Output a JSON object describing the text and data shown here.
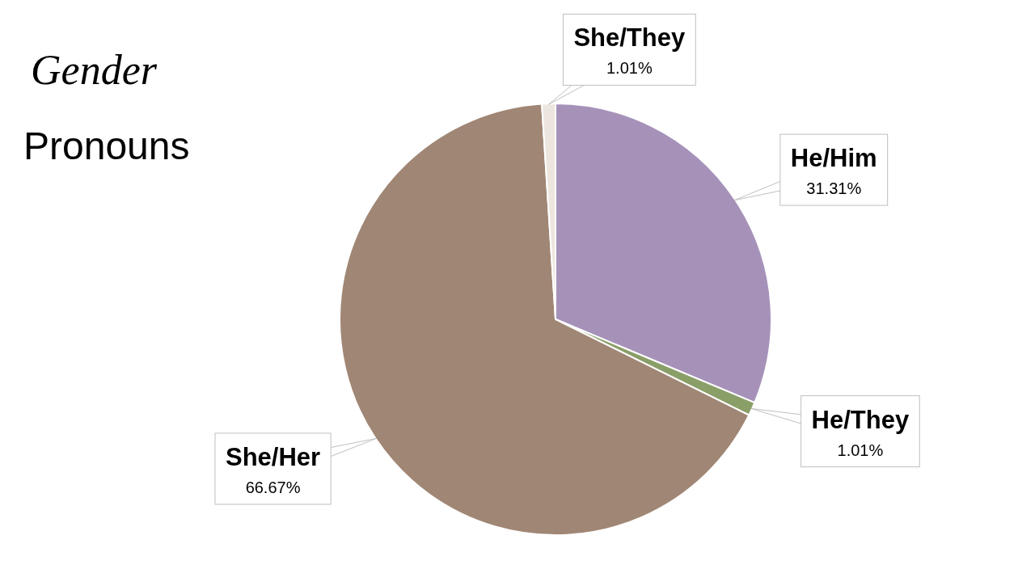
{
  "chart_data": {
    "type": "pie",
    "title": "Gender",
    "subtitle": "Pronouns",
    "categories": [
      "He/Him",
      "He/They",
      "She/Her",
      "She/They"
    ],
    "values": [
      31.31,
      1.01,
      66.67,
      1.01
    ],
    "colors": [
      "#a692b9",
      "#8a9e68",
      "#a08674",
      "#ede6de"
    ],
    "value_labels": [
      "31.31%",
      "1.01%",
      "66.67%",
      "1.01%"
    ]
  }
}
